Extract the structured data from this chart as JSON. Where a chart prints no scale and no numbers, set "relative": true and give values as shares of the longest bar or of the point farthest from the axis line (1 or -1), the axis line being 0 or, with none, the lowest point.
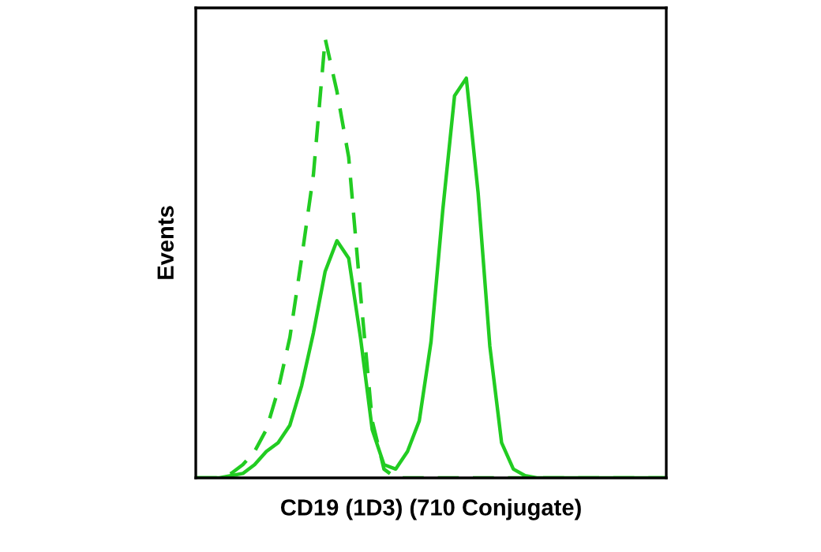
{
  "chart_data": {
    "type": "line",
    "relative": true,
    "xlabel": "CD19 (1D3) (710 Conjugate)",
    "ylabel": "Events",
    "categories": [
      null,
      null,
      null,
      null,
      null,
      null,
      null,
      null,
      null,
      null,
      null,
      null,
      null,
      null,
      null,
      null,
      null,
      null,
      null,
      null,
      null,
      null,
      null,
      null,
      null,
      null,
      null,
      null,
      null,
      null,
      null,
      null,
      null,
      null,
      null,
      null,
      null,
      null,
      null,
      null,
      null
    ],
    "series": [
      {
        "color": "#22cc22",
        "line_style": "dashed",
        "values": [
          0,
          0,
          0,
          0.01,
          0.03,
          0.06,
          0.11,
          0.2,
          0.32,
          0.5,
          0.69,
          1,
          0.88,
          0.73,
          0.42,
          0.13,
          0.02,
          0,
          0,
          0,
          0,
          0,
          0,
          0,
          0,
          0,
          0,
          0,
          0,
          0,
          0,
          0,
          0,
          0,
          0,
          0,
          0,
          0,
          0,
          0,
          0
        ]
      },
      {
        "color": "#22cc22",
        "line_style": "solid",
        "values": [
          0,
          0,
          0,
          0.005,
          0.01,
          0.03,
          0.06,
          0.08,
          0.12,
          0.21,
          0.33,
          0.47,
          0.54,
          0.5,
          0.32,
          0.11,
          0.03,
          0.02,
          0.06,
          0.13,
          0.31,
          0.61,
          0.87,
          0.91,
          0.65,
          0.3,
          0.08,
          0.02,
          0.005,
          0,
          0,
          0,
          0,
          0,
          0,
          0,
          0,
          0,
          0,
          0,
          0
        ]
      }
    ],
    "grid": false,
    "legend": false,
    "marker": "none"
  }
}
